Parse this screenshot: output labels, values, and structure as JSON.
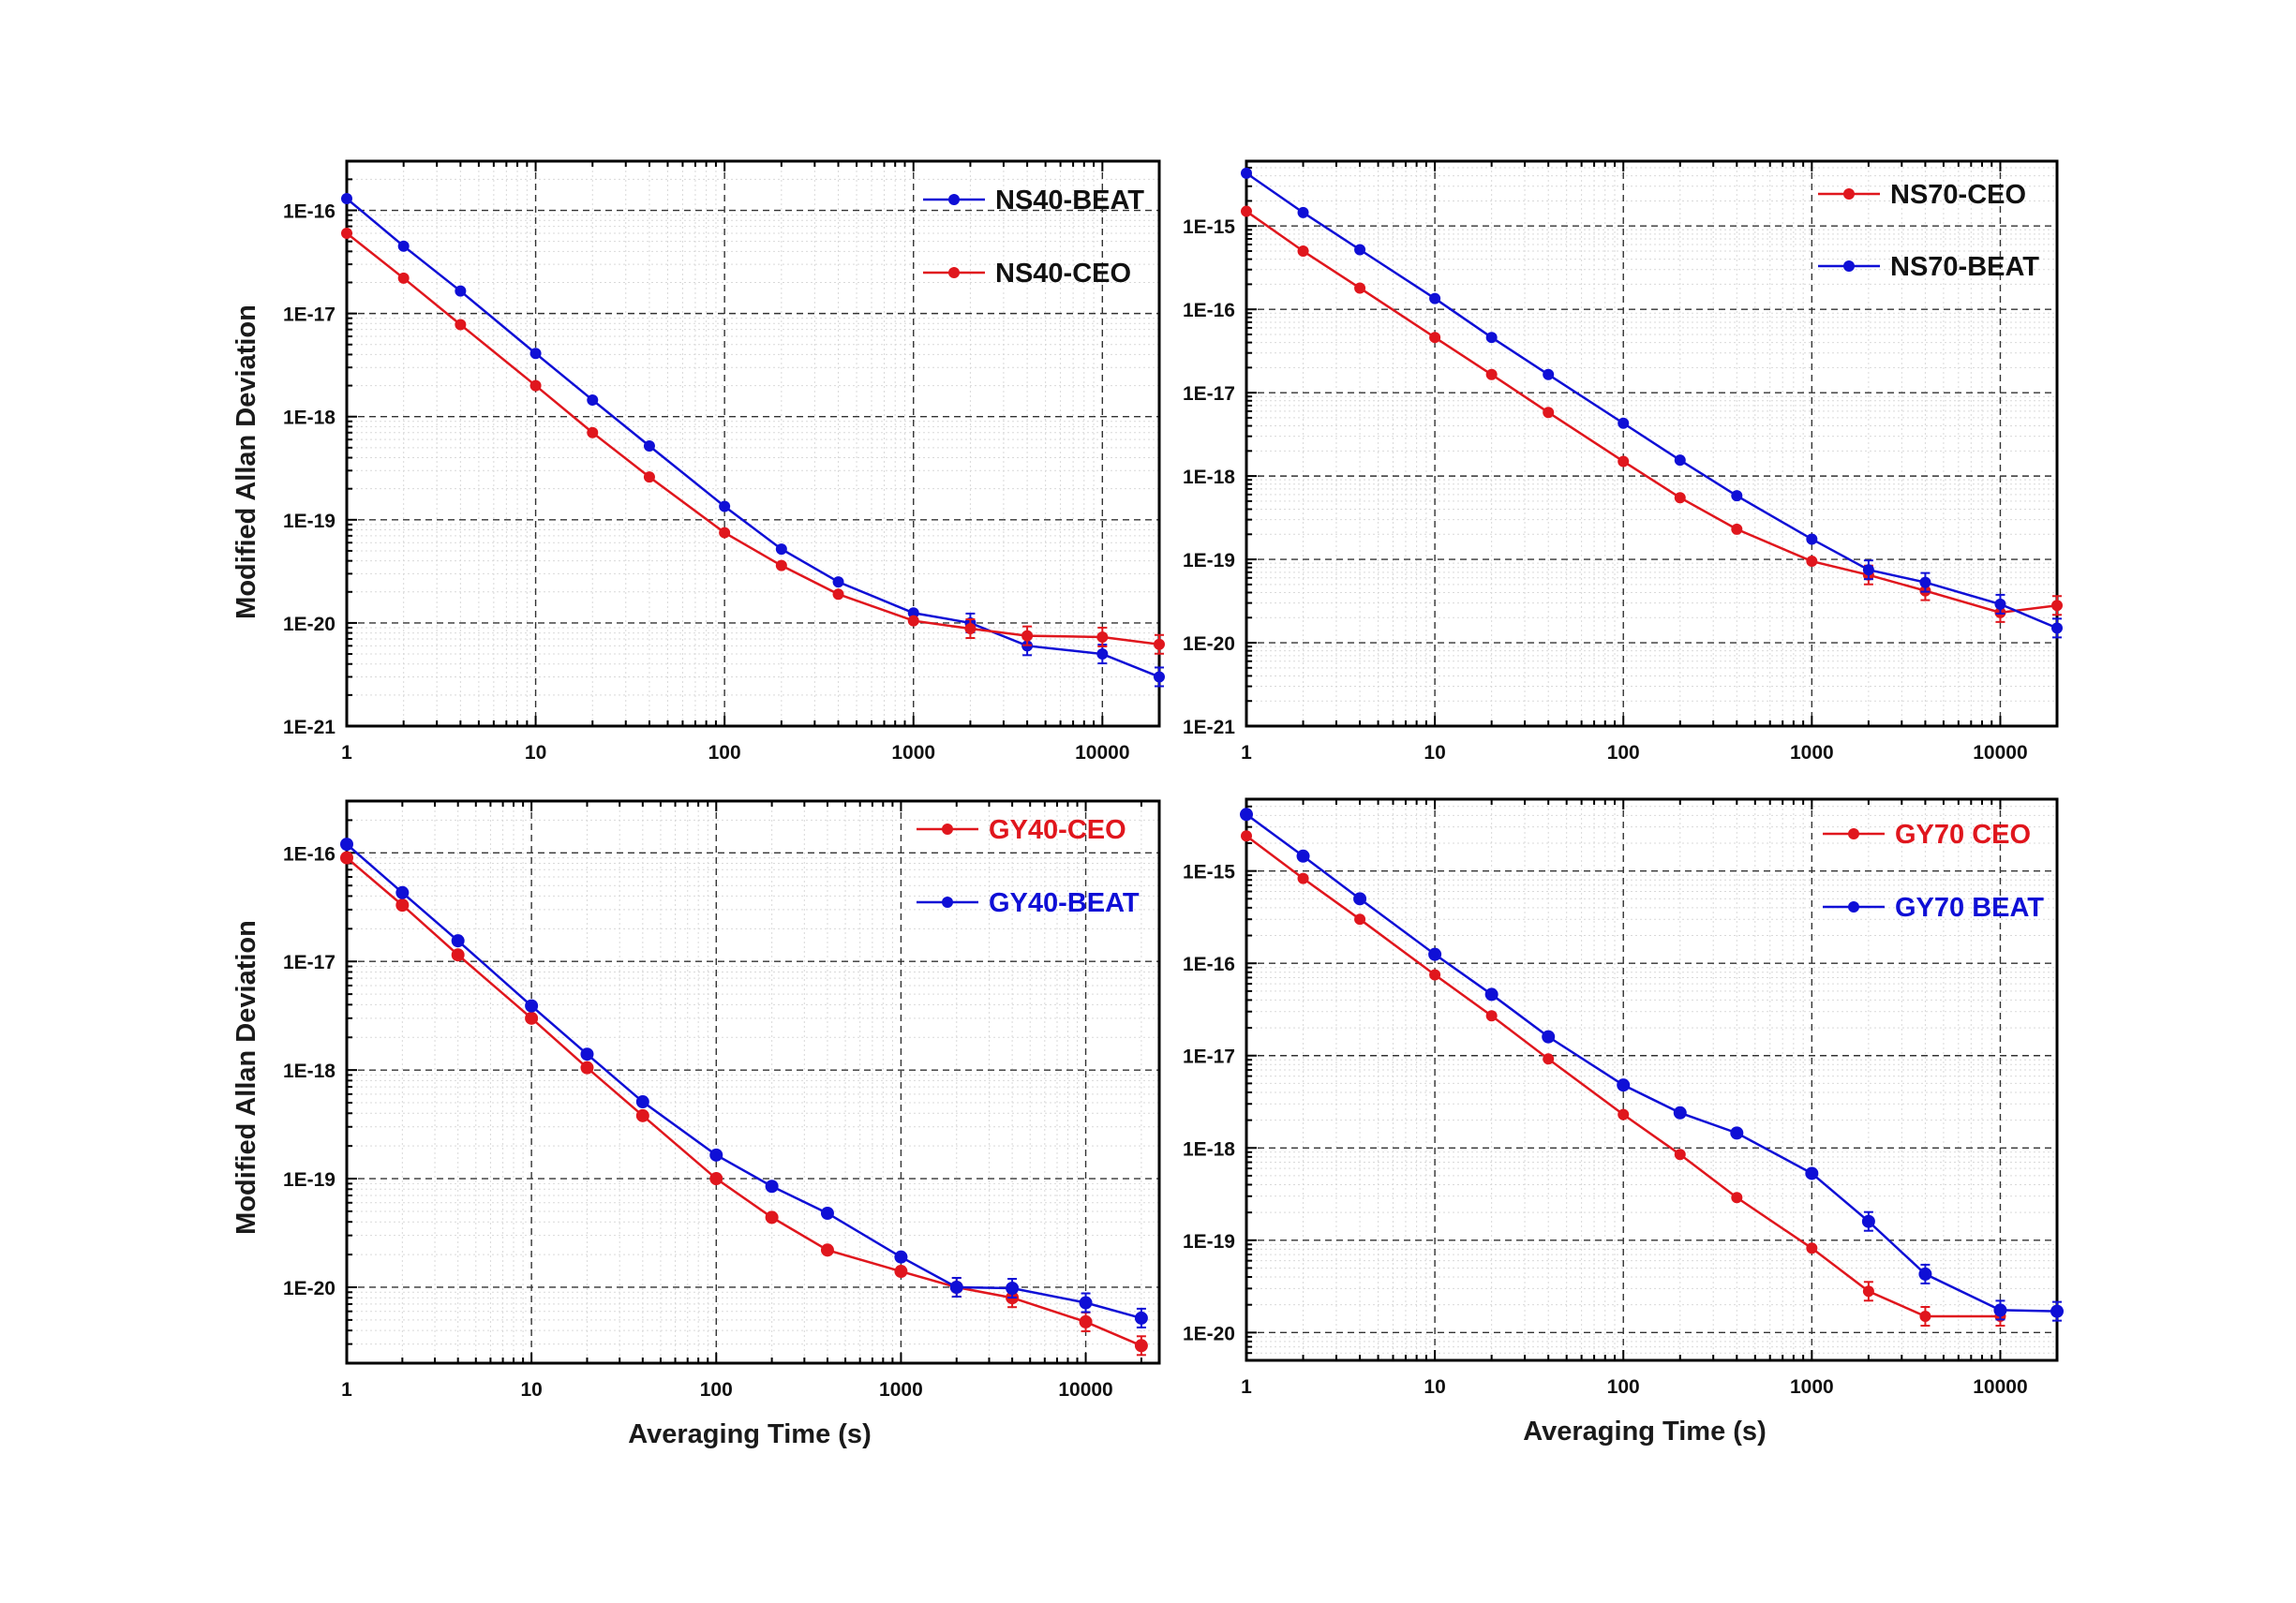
{
  "figure": {
    "y_axis_label_top": "Modified Allan Deviation",
    "y_axis_label_bottom": "Modified Allan Deviation",
    "x_axis_label_left": "Averaging Time (s)",
    "x_axis_label_right": "Averaging Time (s)",
    "colors": {
      "red": "#e0161d",
      "blue": "#0f0fd6"
    }
  },
  "chart_data": [
    {
      "type": "line",
      "id": "top-left",
      "xscale": "log",
      "yscale": "log",
      "xlim": [
        1,
        20000
      ],
      "ylim": [
        1e-21,
        3e-16
      ],
      "xticks": [
        1,
        10,
        100,
        1000,
        10000
      ],
      "xtick_labels": [
        "1",
        "10",
        "100",
        "1000",
        "10000"
      ],
      "yticks": [
        1e-21,
        1e-20,
        1e-19,
        1e-18,
        1e-17,
        1e-16
      ],
      "ytick_labels": [
        "1E-21",
        "1E-20",
        "1E-19",
        "1E-18",
        "1E-17",
        "1E-16"
      ],
      "xlabel": "",
      "ylabel": "Modified Allan Deviation",
      "legend_position": "top-right",
      "x": [
        1,
        2,
        4,
        10,
        20,
        40,
        100,
        200,
        400,
        1000,
        2000,
        4000,
        10000,
        20000
      ],
      "series": [
        {
          "name": "NS40-BEAT",
          "color": "#0f0fd6",
          "values": [
            1.3e-16,
            4.5e-17,
            1.65e-17,
            4.1e-18,
            1.45e-18,
            5.2e-19,
            1.35e-19,
            5.2e-20,
            2.5e-20,
            1.25e-20,
            1e-20,
            6e-21,
            5e-21,
            3e-21
          ]
        },
        {
          "name": "NS40-CEO",
          "color": "#e0161d",
          "values": [
            6e-17,
            2.2e-17,
            7.8e-18,
            2e-18,
            7e-19,
            2.6e-19,
            7.5e-20,
            3.6e-20,
            1.9e-20,
            1.05e-20,
            8.8e-21,
            7.5e-21,
            7.3e-21,
            6.2e-21
          ]
        }
      ]
    },
    {
      "type": "line",
      "id": "top-right",
      "xscale": "log",
      "yscale": "log",
      "xlim": [
        1,
        20000
      ],
      "ylim": [
        1e-21,
        6e-15
      ],
      "xticks": [
        1,
        10,
        100,
        1000,
        10000
      ],
      "xtick_labels": [
        "1",
        "10",
        "100",
        "1000",
        "10000"
      ],
      "yticks": [
        1e-21,
        1e-20,
        1e-19,
        1e-18,
        1e-17,
        1e-16,
        1e-15
      ],
      "ytick_labels": [
        "1E-21",
        "1E-20",
        "1E-19",
        "1E-18",
        "1E-17",
        "1E-16",
        "1E-15"
      ],
      "xlabel": "",
      "ylabel": "",
      "legend_position": "top-right",
      "x": [
        1,
        2,
        4,
        10,
        20,
        40,
        100,
        200,
        400,
        1000,
        2000,
        4000,
        10000,
        20000
      ],
      "series": [
        {
          "name": "NS70-CEO",
          "color": "#e0161d",
          "values": [
            1.5e-15,
            5e-16,
            1.8e-16,
            4.6e-17,
            1.65e-17,
            5.8e-18,
            1.5e-18,
            5.5e-19,
            2.3e-19,
            9.5e-20,
            6.5e-20,
            4.2e-20,
            2.3e-20,
            2.8e-20
          ]
        },
        {
          "name": "NS70-BEAT",
          "color": "#0f0fd6",
          "values": [
            4.3e-15,
            1.45e-15,
            5.2e-16,
            1.35e-16,
            4.6e-17,
            1.65e-17,
            4.3e-18,
            1.55e-18,
            5.8e-19,
            1.75e-19,
            7.5e-20,
            5.3e-20,
            2.9e-20,
            1.5e-20
          ]
        }
      ]
    },
    {
      "type": "line",
      "id": "bottom-left",
      "xscale": "log",
      "yscale": "log",
      "xlim": [
        1,
        25000
      ],
      "ylim": [
        2e-21,
        3e-16
      ],
      "xticks": [
        1,
        10,
        100,
        1000,
        10000
      ],
      "xtick_labels": [
        "1",
        "10",
        "100",
        "1000",
        "10000"
      ],
      "yticks": [
        1e-20,
        1e-19,
        1e-18,
        1e-17,
        1e-16
      ],
      "ytick_labels": [
        "1E-20",
        "1E-19",
        "1E-18",
        "1E-17",
        "1E-16"
      ],
      "xlabel": "Averaging Time (s)",
      "ylabel": "Modified Allan Deviation",
      "legend_position": "top-right",
      "x": [
        1,
        2,
        4,
        10,
        20,
        40,
        100,
        200,
        400,
        1000,
        2000,
        4000,
        10000,
        20000
      ],
      "series": [
        {
          "name": "GY40-CEO",
          "color": "#e0161d",
          "values": [
            9e-17,
            3.3e-17,
            1.15e-17,
            3e-18,
            1.05e-18,
            3.8e-19,
            1e-19,
            4.4e-20,
            2.2e-20,
            1.4e-20,
            1e-20,
            8e-21,
            4.8e-21,
            2.9e-21
          ]
        },
        {
          "name": "GY40-BEAT",
          "color": "#0f0fd6",
          "values": [
            1.2e-16,
            4.3e-17,
            1.55e-17,
            3.9e-18,
            1.4e-18,
            5.1e-19,
            1.65e-19,
            8.5e-20,
            4.8e-20,
            1.9e-20,
            1e-20,
            9.8e-21,
            7.2e-21,
            5.2e-21
          ]
        }
      ]
    },
    {
      "type": "line",
      "id": "bottom-right",
      "xscale": "log",
      "yscale": "log",
      "xlim": [
        1,
        20000
      ],
      "ylim": [
        5e-21,
        6e-15
      ],
      "xticks": [
        1,
        10,
        100,
        1000,
        10000
      ],
      "xtick_labels": [
        "1",
        "10",
        "100",
        "1000",
        "10000"
      ],
      "yticks": [
        1e-20,
        1e-19,
        1e-18,
        1e-17,
        1e-16,
        1e-15
      ],
      "ytick_labels": [
        "1E-20",
        "1E-19",
        "1E-18",
        "1E-17",
        "1E-16",
        "1E-15"
      ],
      "xlabel": "Averaging Time (s)",
      "ylabel": "",
      "legend_position": "top-right",
      "x": [
        1,
        2,
        4,
        10,
        20,
        40,
        100,
        200,
        400,
        1000,
        2000,
        4000,
        10000,
        20000
      ],
      "series": [
        {
          "name": "GY70 CEO",
          "color": "#e0161d",
          "values": [
            2.4e-15,
            8.3e-16,
            3e-16,
            7.5e-17,
            2.7e-17,
            9.2e-18,
            2.3e-18,
            8.5e-19,
            2.9e-19,
            8.2e-20,
            2.8e-20,
            1.5e-20,
            1.5e-20,
            null
          ]
        },
        {
          "name": "GY70 BEAT",
          "color": "#0f0fd6",
          "values": [
            4.1e-15,
            1.45e-15,
            5e-16,
            1.25e-16,
            4.6e-17,
            1.6e-17,
            4.8e-18,
            2.4e-18,
            1.45e-18,
            5.3e-19,
            1.6e-19,
            4.3e-20,
            1.75e-20,
            1.7e-20
          ]
        }
      ]
    }
  ]
}
